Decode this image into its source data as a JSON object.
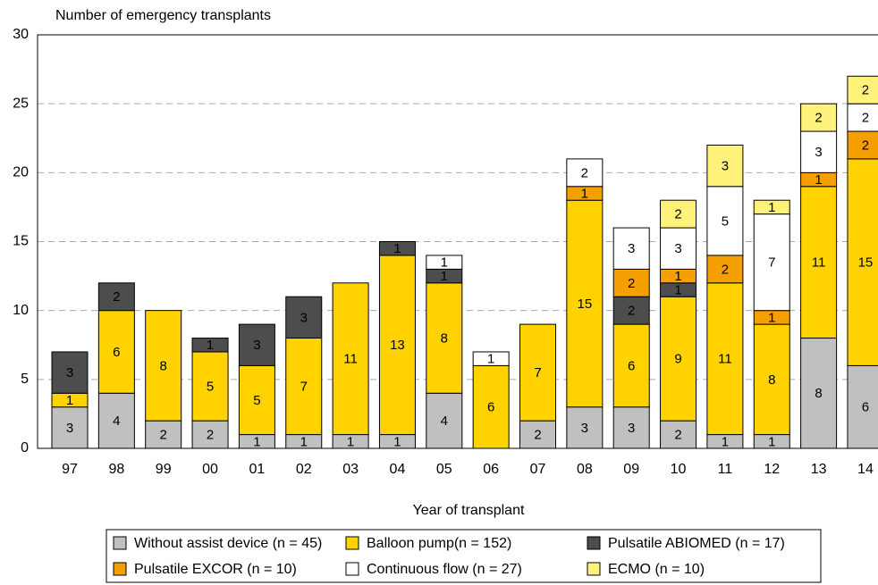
{
  "chart_data": {
    "type": "stacked-bar",
    "y_title": "Number of emergency transplants",
    "x_title": "Year of transplant",
    "categories": [
      "97",
      "98",
      "99",
      "00",
      "01",
      "02",
      "03",
      "04",
      "05",
      "06",
      "07",
      "08",
      "09",
      "10",
      "11",
      "12",
      "13",
      "14"
    ],
    "ylim": [
      0,
      30
    ],
    "yticks": [
      0,
      5,
      10,
      15,
      20,
      25,
      30
    ],
    "grid": true,
    "series": [
      {
        "name": "Without assist device (n = 45)",
        "color": "#c0c0c0",
        "values": [
          3,
          4,
          2,
          2,
          1,
          1,
          1,
          1,
          4,
          0,
          2,
          3,
          3,
          2,
          1,
          1,
          8,
          6
        ]
      },
      {
        "name": "Balloon pump(n = 152)",
        "color": "#ffd200",
        "values": [
          1,
          6,
          8,
          5,
          5,
          7,
          11,
          13,
          8,
          6,
          7,
          15,
          6,
          9,
          11,
          8,
          11,
          15
        ]
      },
      {
        "name": "Pulsatile ABIOMED (n = 17)",
        "color": "#4d4d4d",
        "values": [
          3,
          2,
          0,
          1,
          3,
          3,
          0,
          1,
          1,
          0,
          0,
          0,
          2,
          1,
          0,
          0,
          0,
          0
        ]
      },
      {
        "name": "Pulsatile EXCOR (n = 10)",
        "color": "#f5a000",
        "values": [
          0,
          0,
          0,
          0,
          0,
          0,
          0,
          0,
          0,
          0,
          0,
          1,
          2,
          1,
          2,
          1,
          1,
          2
        ]
      },
      {
        "name": "Continuous flow (n = 27)",
        "color": "#ffffff",
        "values": [
          0,
          0,
          0,
          0,
          0,
          0,
          0,
          0,
          1,
          1,
          0,
          2,
          3,
          3,
          5,
          7,
          3,
          2
        ]
      },
      {
        "name": "ECMO (n = 10)",
        "color": "#fff27a",
        "values": [
          0,
          0,
          0,
          0,
          0,
          0,
          0,
          0,
          0,
          0,
          0,
          0,
          0,
          2,
          3,
          1,
          2,
          2
        ]
      }
    ]
  }
}
